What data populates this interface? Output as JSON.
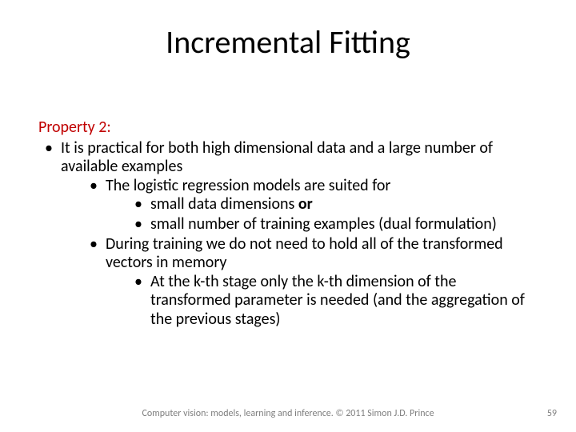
{
  "title": "Incremental Fitting",
  "property_label": "Property 2:",
  "b1": "It is practical for both high dimensional data and a large number of available examples",
  "b1_1": "The logistic regression models are suited for",
  "b1_1_1_pre": "small data dimensions ",
  "b1_1_1_bold": "or",
  "b1_1_2": "small number of training examples (dual formulation)",
  "b1_2": "During training we do not need to hold all of the transformed vectors in memory",
  "b1_2_1": "At the k-th stage only the k-th dimension of the transformed parameter is needed (and the aggregation of the previous stages)",
  "footer": "Computer vision: models, learning and inference.  © 2011 Simon J.D. Prince",
  "pagenum": "59",
  "colors": {
    "property_label": "#c00000",
    "body_text": "#000000",
    "footer_text": "#7f7f7f",
    "background": "#ffffff"
  },
  "fontsize": {
    "title": 40,
    "body": 20,
    "footer": 12
  }
}
